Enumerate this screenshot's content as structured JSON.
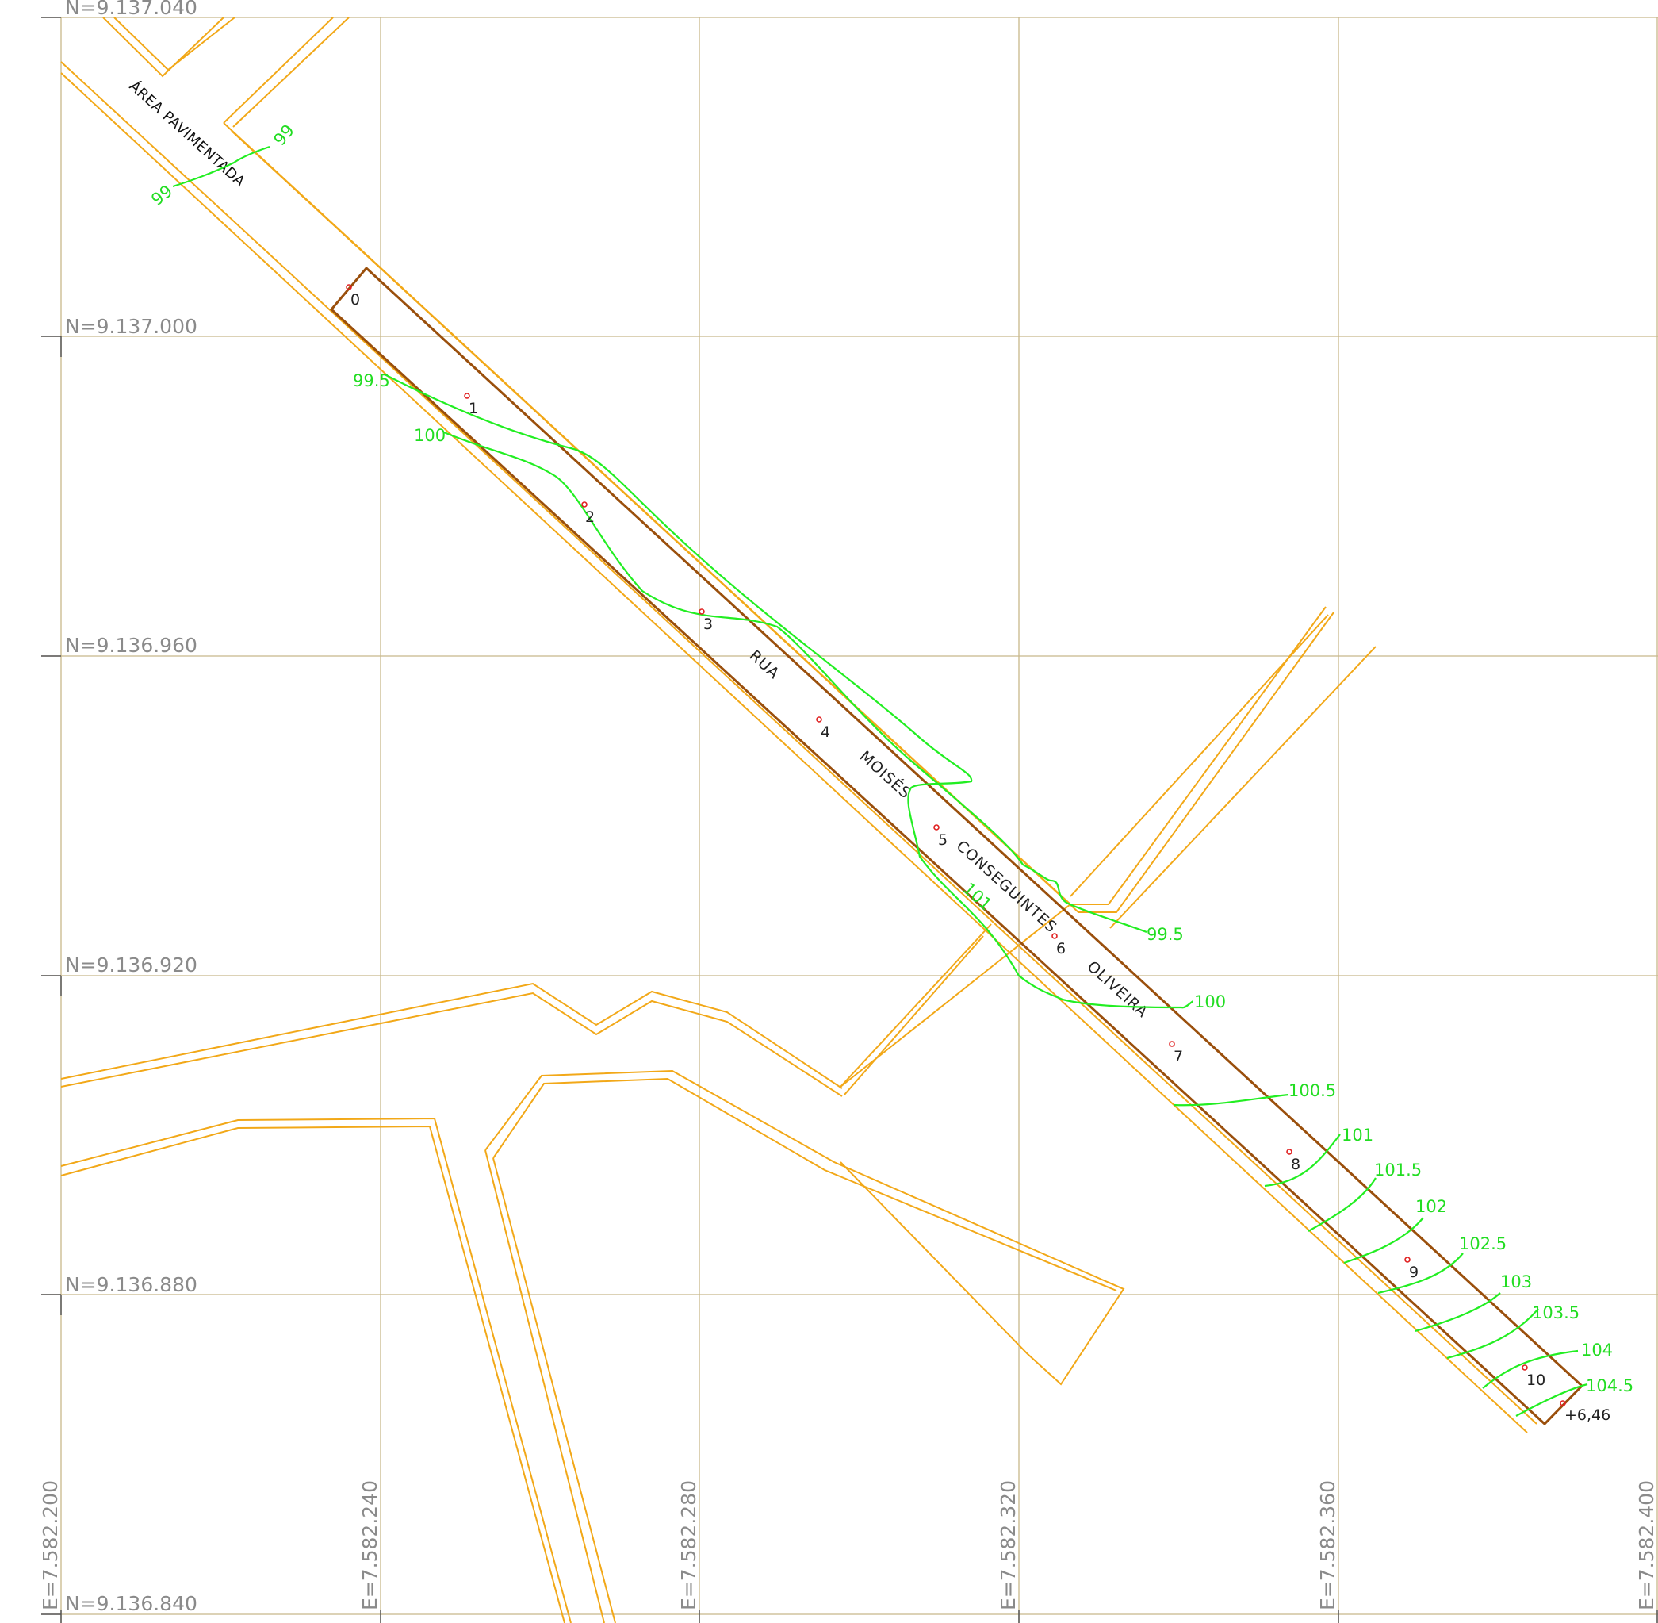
{
  "grid": {
    "northing_labels": [
      "N=9.137.040",
      "N=9.137.000",
      "N=9.136.960",
      "N=9.136.920",
      "N=9.136.880",
      "N=9.136.840"
    ],
    "easting_labels": [
      "E=7.582.200",
      "E=7.582.240",
      "E=7.582.280",
      "E=7.582.320",
      "E=7.582.360",
      "E=7.582.400"
    ]
  },
  "street": {
    "words": [
      "RUA",
      "MOISÉS",
      "CONSEGUINTES",
      "OLIVEIRA"
    ]
  },
  "area_label": "ÁREA PAVIMENTADA",
  "stations": [
    "0",
    "1",
    "2",
    "3",
    "4",
    "5",
    "6",
    "7",
    "8",
    "9",
    "10",
    "+6,46"
  ],
  "contour_labels": [
    "99",
    "99",
    "99.5",
    "100",
    "101",
    "99.5",
    "100",
    "100.5",
    "101",
    "101.5",
    "102",
    "102.5",
    "103",
    "103.5",
    "104",
    "104.5"
  ],
  "colors": {
    "grid": "#c8b88a",
    "road_edges": "#f2a818",
    "alignment": "#9a4f0c",
    "contours": "#22ee22",
    "station_markers": "#e02020"
  }
}
